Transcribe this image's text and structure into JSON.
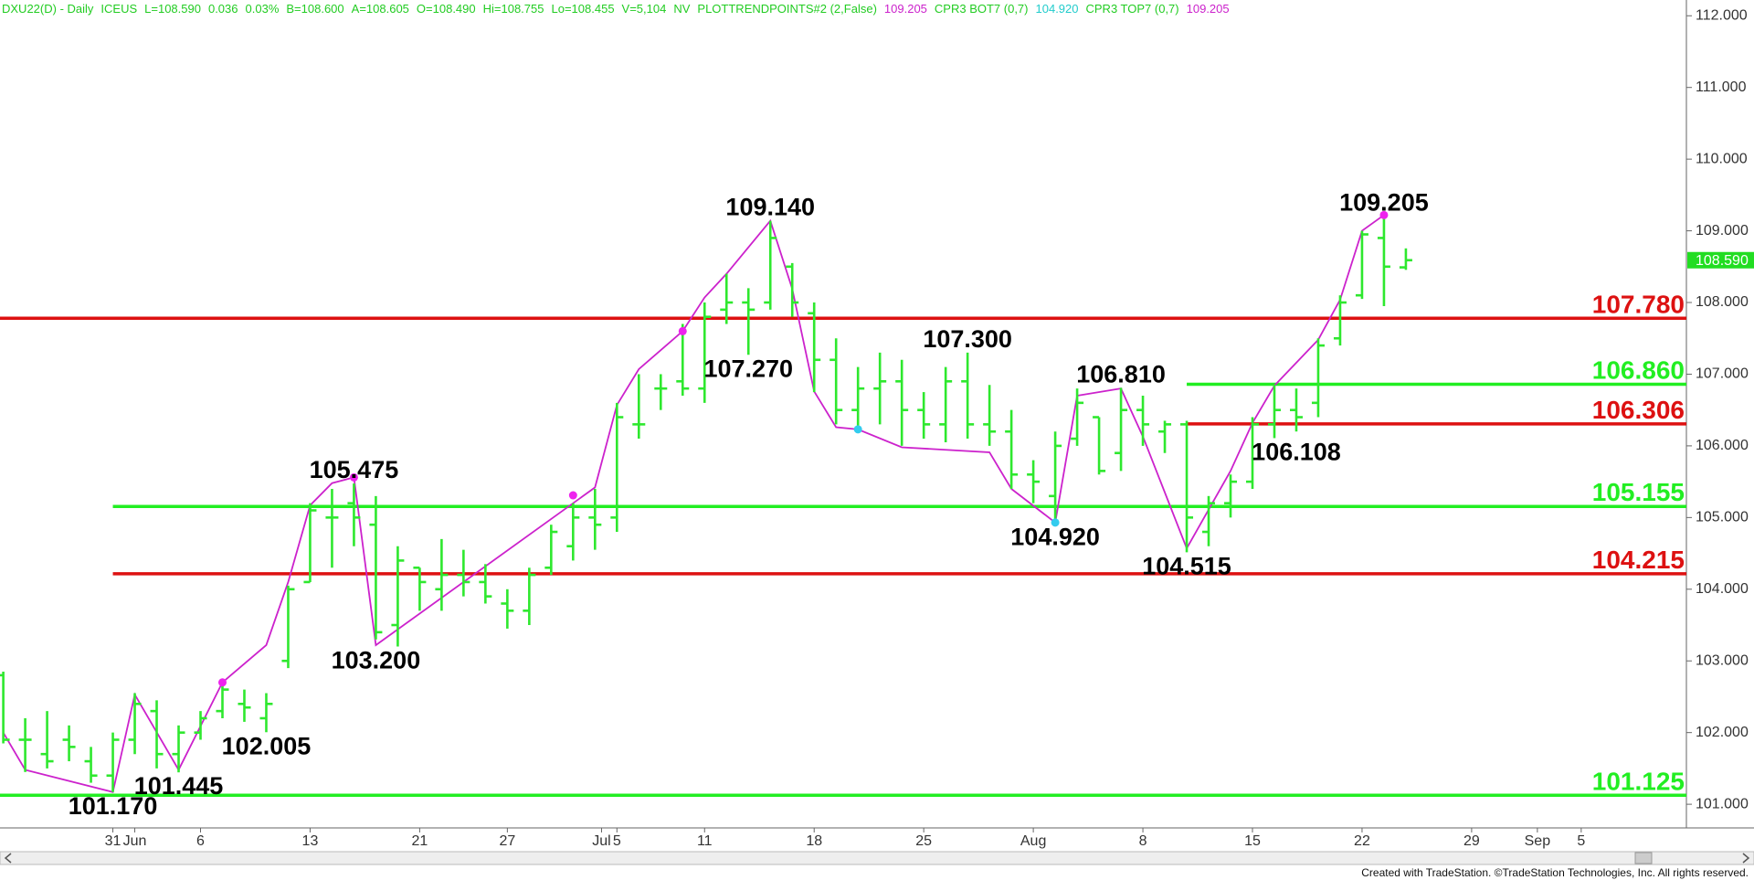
{
  "chart_data": {
    "type": "ohlc",
    "header": [
      {
        "text": "DXU22(D) - Daily",
        "color": "#22cc22"
      },
      {
        "text": "ICEUS",
        "color": "#22cc22"
      },
      {
        "text": "L=108.590",
        "color": "#22cc22"
      },
      {
        "text": "0.036",
        "color": "#22cc22"
      },
      {
        "text": "0.03%",
        "color": "#22cc22"
      },
      {
        "text": "B=108.600",
        "color": "#22cc22"
      },
      {
        "text": "A=108.605",
        "color": "#22cc22"
      },
      {
        "text": "O=108.490",
        "color": "#22cc22"
      },
      {
        "text": "Hi=108.755",
        "color": "#22cc22"
      },
      {
        "text": "Lo=108.455",
        "color": "#22cc22"
      },
      {
        "text": "V=5,104",
        "color": "#22cc22"
      },
      {
        "text": "NV",
        "color": "#22cc22"
      },
      {
        "text": "PLOTTRENDPOINTS#2 (2,False)",
        "color": "#22cc22"
      },
      {
        "text": "109.205",
        "color": "#cc22cc"
      },
      {
        "text": "CPR3 BOT7 (0,7)",
        "color": "#22cc22"
      },
      {
        "text": "104.920",
        "color": "#22cccc"
      },
      {
        "text": "CPR3 TOP7 (0,7)",
        "color": "#22cc22"
      },
      {
        "text": "109.205",
        "color": "#cc22cc"
      }
    ],
    "footer": "Created with TradeStation. ©TradeStation Technologies, Inc. All rights reserved.",
    "bar_color": "#2ee82e",
    "ylim": [
      100.67,
      112.22
    ],
    "yticks": [
      {
        "value": 101,
        "label": "101.000"
      },
      {
        "value": 102,
        "label": "102.000"
      },
      {
        "value": 103,
        "label": "103.000"
      },
      {
        "value": 104,
        "label": "104.000"
      },
      {
        "value": 105,
        "label": "105.000"
      },
      {
        "value": 106,
        "label": "106.000"
      },
      {
        "value": 107,
        "label": "107.000"
      },
      {
        "value": 108,
        "label": "108.000"
      },
      {
        "value": 109,
        "label": "109.000"
      },
      {
        "value": 110,
        "label": "110.000"
      },
      {
        "value": 111,
        "label": "111.000"
      },
      {
        "value": 112,
        "label": "112.000"
      }
    ],
    "xlim": [
      -0.15,
      76.8
    ],
    "xticks": [
      {
        "value": 5,
        "label": "31"
      },
      {
        "value": 6,
        "label": "Jun"
      },
      {
        "value": 9,
        "label": "6"
      },
      {
        "value": 14,
        "label": "13"
      },
      {
        "value": 19,
        "label": "21"
      },
      {
        "value": 23,
        "label": "27"
      },
      {
        "value": 27.3,
        "label": "Jul"
      },
      {
        "value": 28,
        "label": "5"
      },
      {
        "value": 32,
        "label": "11"
      },
      {
        "value": 37,
        "label": "18"
      },
      {
        "value": 42,
        "label": "25"
      },
      {
        "value": 47,
        "label": "Aug"
      },
      {
        "value": 52,
        "label": "8"
      },
      {
        "value": 57,
        "label": "15"
      },
      {
        "value": 62,
        "label": "22"
      },
      {
        "value": 67,
        "label": "29"
      },
      {
        "value": 70,
        "label": "Sep"
      },
      {
        "value": 72,
        "label": "5"
      }
    ],
    "bars": [
      {
        "open": 102.8,
        "high": 102.85,
        "low": 101.85,
        "close": 101.9
      },
      {
        "open": 101.9,
        "high": 102.2,
        "low": 101.45,
        "close": 101.9
      },
      {
        "open": 101.7,
        "high": 102.3,
        "low": 101.5,
        "close": 101.6
      },
      {
        "open": 101.9,
        "high": 102.1,
        "low": 101.6,
        "close": 101.8
      },
      {
        "open": 101.6,
        "high": 101.8,
        "low": 101.3,
        "close": 101.4
      },
      {
        "open": 101.4,
        "high": 102.0,
        "low": 101.17,
        "close": 101.9
      },
      {
        "open": 101.9,
        "high": 102.55,
        "low": 101.7,
        "close": 102.4
      },
      {
        "open": 102.3,
        "high": 102.45,
        "low": 101.5,
        "close": 101.7
      },
      {
        "open": 101.7,
        "high": 102.1,
        "low": 101.445,
        "close": 102.0
      },
      {
        "open": 102.0,
        "high": 102.3,
        "low": 101.9,
        "close": 102.2
      },
      {
        "open": 102.3,
        "high": 102.7,
        "low": 102.2,
        "close": 102.6
      },
      {
        "open": 102.4,
        "high": 102.6,
        "low": 102.15,
        "close": 102.35
      },
      {
        "open": 102.2,
        "high": 102.55,
        "low": 102.005,
        "close": 102.4
      },
      {
        "open": 103.0,
        "high": 104.05,
        "low": 102.9,
        "close": 104.0
      },
      {
        "open": 104.1,
        "high": 105.2,
        "low": 104.1,
        "close": 105.1
      },
      {
        "open": 105.0,
        "high": 105.4,
        "low": 104.3,
        "close": 105.0
      },
      {
        "open": 105.2,
        "high": 105.475,
        "low": 104.6,
        "close": 105.0
      },
      {
        "open": 104.9,
        "high": 105.3,
        "low": 103.3,
        "close": 103.4
      },
      {
        "open": 103.5,
        "high": 104.6,
        "low": 103.2,
        "close": 104.4
      },
      {
        "open": 104.3,
        "high": 104.3,
        "low": 103.7,
        "close": 104.1
      },
      {
        "open": 104.0,
        "high": 104.7,
        "low": 103.7,
        "close": 104.2
      },
      {
        "open": 104.2,
        "high": 104.55,
        "low": 103.9,
        "close": 104.1
      },
      {
        "open": 104.1,
        "high": 104.35,
        "low": 103.8,
        "close": 103.9
      },
      {
        "open": 103.8,
        "high": 104.0,
        "low": 103.45,
        "close": 103.7
      },
      {
        "open": 103.7,
        "high": 104.3,
        "low": 103.5,
        "close": 104.2
      },
      {
        "open": 104.3,
        "high": 104.9,
        "low": 104.2,
        "close": 104.8
      },
      {
        "open": 104.6,
        "high": 105.2,
        "low": 104.4,
        "close": 105.0
      },
      {
        "open": 105.0,
        "high": 105.4,
        "low": 104.55,
        "close": 104.9
      },
      {
        "open": 105.0,
        "high": 106.6,
        "low": 104.8,
        "close": 106.4
      },
      {
        "open": 106.3,
        "high": 107.0,
        "low": 106.1,
        "close": 106.3
      },
      {
        "open": 106.8,
        "high": 107.0,
        "low": 106.5,
        "close": 106.8
      },
      {
        "open": 106.9,
        "high": 107.7,
        "low": 106.7,
        "close": 106.8
      },
      {
        "open": 106.8,
        "high": 108.0,
        "low": 106.6,
        "close": 107.8
      },
      {
        "open": 107.9,
        "high": 108.4,
        "low": 107.7,
        "close": 108.0
      },
      {
        "open": 108.0,
        "high": 108.2,
        "low": 107.27,
        "close": 107.9
      },
      {
        "open": 108.0,
        "high": 109.14,
        "low": 107.9,
        "close": 108.9
      },
      {
        "open": 108.5,
        "high": 108.55,
        "low": 107.8,
        "close": 108.0
      },
      {
        "open": 107.85,
        "high": 108.0,
        "low": 106.75,
        "close": 107.2
      },
      {
        "open": 107.2,
        "high": 107.5,
        "low": 106.3,
        "close": 106.5
      },
      {
        "open": 106.5,
        "high": 107.1,
        "low": 106.2,
        "close": 106.8
      },
      {
        "open": 106.8,
        "high": 107.3,
        "low": 106.3,
        "close": 106.9
      },
      {
        "open": 106.9,
        "high": 107.2,
        "low": 106.0,
        "close": 106.5
      },
      {
        "open": 106.5,
        "high": 106.75,
        "low": 106.1,
        "close": 106.3
      },
      {
        "open": 106.3,
        "high": 107.1,
        "low": 106.05,
        "close": 106.9
      },
      {
        "open": 106.9,
        "high": 107.3,
        "low": 106.1,
        "close": 106.3
      },
      {
        "open": 106.3,
        "high": 106.85,
        "low": 106.0,
        "close": 106.2
      },
      {
        "open": 106.2,
        "high": 106.5,
        "low": 105.4,
        "close": 105.6
      },
      {
        "open": 105.6,
        "high": 105.8,
        "low": 105.2,
        "close": 105.5
      },
      {
        "open": 105.3,
        "high": 106.2,
        "low": 104.92,
        "close": 106.0
      },
      {
        "open": 106.1,
        "high": 106.8,
        "low": 106.0,
        "close": 106.6
      },
      {
        "open": 106.4,
        "high": 106.4,
        "low": 105.6,
        "close": 105.65
      },
      {
        "open": 105.9,
        "high": 106.81,
        "low": 105.65,
        "close": 106.5
      },
      {
        "open": 106.5,
        "high": 106.7,
        "low": 106.0,
        "close": 106.3
      },
      {
        "open": 106.2,
        "high": 106.35,
        "low": 105.9,
        "close": 106.3
      },
      {
        "open": 106.3,
        "high": 106.35,
        "low": 104.515,
        "close": 105.0
      },
      {
        "open": 104.8,
        "high": 105.3,
        "low": 104.6,
        "close": 105.2
      },
      {
        "open": 105.2,
        "high": 105.6,
        "low": 105.0,
        "close": 105.5
      },
      {
        "open": 105.5,
        "high": 106.4,
        "low": 105.4,
        "close": 106.3
      },
      {
        "open": 106.3,
        "high": 106.85,
        "low": 106.108,
        "close": 106.5
      },
      {
        "open": 106.5,
        "high": 106.8,
        "low": 106.2,
        "close": 106.4
      },
      {
        "open": 106.6,
        "high": 107.5,
        "low": 106.4,
        "close": 107.4
      },
      {
        "open": 107.5,
        "high": 108.1,
        "low": 107.4,
        "close": 108.0
      },
      {
        "open": 108.1,
        "high": 109.0,
        "low": 108.05,
        "close": 108.95
      },
      {
        "open": 108.9,
        "high": 109.205,
        "low": 107.95,
        "close": 108.5
      },
      {
        "open": 108.49,
        "high": 108.755,
        "low": 108.455,
        "close": 108.59
      }
    ],
    "trend_line": {
      "color": "#cc22cc",
      "x": [
        0,
        1,
        5,
        6,
        8,
        10,
        12,
        13,
        14,
        15,
        16,
        17,
        27,
        28,
        29,
        31,
        32,
        33,
        35,
        36,
        37,
        38,
        39,
        41,
        45,
        46,
        48,
        49,
        51,
        52,
        54,
        56,
        57,
        58,
        60,
        61,
        62,
        63
      ],
      "values": [
        102.0,
        101.48,
        101.17,
        102.53,
        101.48,
        102.7,
        103.22,
        104.1,
        105.17,
        105.48,
        105.56,
        103.22,
        105.42,
        106.57,
        107.07,
        107.6,
        108.07,
        108.4,
        109.14,
        108.19,
        106.76,
        106.26,
        106.23,
        105.98,
        105.91,
        105.4,
        104.93,
        106.7,
        106.8,
        106.13,
        104.57,
        105.65,
        106.32,
        106.84,
        107.48,
        108.04,
        109.0,
        109.22
      ]
    },
    "markers": [
      {
        "x": 10,
        "value": 102.7,
        "color": "#ee22ee"
      },
      {
        "x": 16,
        "value": 105.56,
        "color": "#ee22ee"
      },
      {
        "x": 26,
        "value": 105.31,
        "color": "#ee22ee"
      },
      {
        "x": 31,
        "value": 107.6,
        "color": "#ee22ee"
      },
      {
        "x": 39,
        "value": 106.23,
        "color": "#33ccee"
      },
      {
        "x": 48,
        "value": 104.93,
        "color": "#33ccee"
      },
      {
        "x": 63,
        "value": 109.22,
        "color": "#ee22ee"
      }
    ],
    "levels": [
      {
        "value": 107.78,
        "label": "107.780",
        "color": "#dd1111"
      },
      {
        "value": 106.86,
        "label": "106.860",
        "color": "#22ee22",
        "from": 54
      },
      {
        "value": 106.306,
        "label": "106.306",
        "color": "#dd1111",
        "from": 54
      },
      {
        "value": 105.155,
        "label": "105.155",
        "color": "#22ee22",
        "from": 5
      },
      {
        "value": 104.215,
        "label": "104.215",
        "color": "#dd1111",
        "from": 5
      },
      {
        "value": 101.125,
        "label": "101.125",
        "color": "#22ee22"
      }
    ],
    "annotations": [
      {
        "x": 35,
        "value": 109.14,
        "label": "109.140",
        "place": "above"
      },
      {
        "x": 34,
        "value": 107.27,
        "label": "107.270",
        "place": "below"
      },
      {
        "x": 44,
        "value": 107.3,
        "label": "107.300",
        "place": "above"
      },
      {
        "x": 51,
        "value": 106.81,
        "label": "106.810",
        "place": "above"
      },
      {
        "x": 48,
        "value": 104.92,
        "label": "104.920",
        "place": "below"
      },
      {
        "x": 54,
        "value": 104.515,
        "label": "104.515",
        "place": "below"
      },
      {
        "x": 59,
        "value": 106.108,
        "label": "106.108",
        "place": "below"
      },
      {
        "x": 63,
        "value": 109.205,
        "label": "109.205",
        "place": "above"
      },
      {
        "x": 16,
        "value": 105.475,
        "label": "105.475",
        "place": "above"
      },
      {
        "x": 17,
        "value": 103.2,
        "label": "103.200",
        "place": "below"
      },
      {
        "x": 12,
        "value": 102.005,
        "label": "102.005",
        "place": "below"
      },
      {
        "x": 8,
        "value": 101.445,
        "label": "101.445",
        "place": "below"
      },
      {
        "x": 5,
        "value": 101.17,
        "label": "101.170",
        "place": "below"
      }
    ],
    "last_price": {
      "value": 108.59,
      "label": "108.590",
      "color": "#22dd22"
    }
  }
}
